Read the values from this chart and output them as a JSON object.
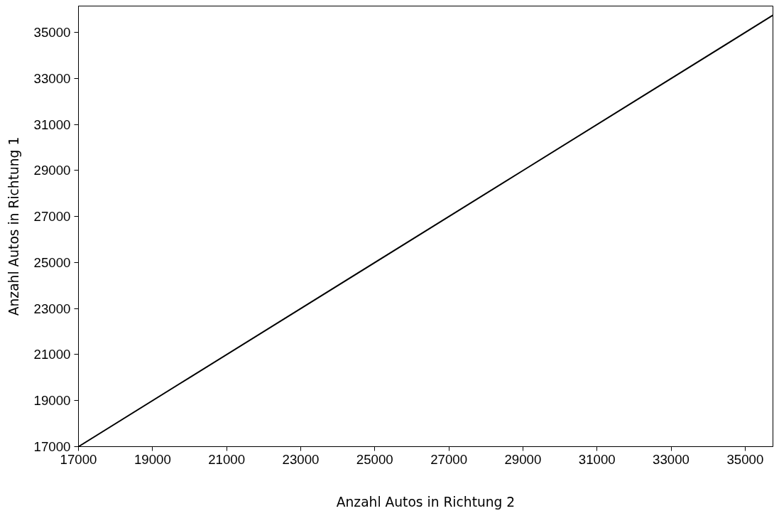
{
  "chart_data": {
    "type": "line",
    "xlabel": "Anzahl Autos in Richtung 2",
    "ylabel": "Anzahl Autos in Richtung 1",
    "x": [
      17000,
      20000,
      29000,
      32000,
      35750
    ],
    "series": [
      {
        "color": "#000000",
        "values": [
          17000,
          20000,
          29000,
          32000,
          35750
        ]
      }
    ],
    "xlim": [
      17000,
      35750
    ],
    "ylim": [
      17000,
      36150
    ],
    "xticks": [
      17000,
      19000,
      21000,
      23000,
      25000,
      27000,
      29000,
      31000,
      33000,
      35000
    ],
    "yticks": [
      17000,
      19000,
      21000,
      23000,
      25000,
      27000,
      29000,
      31000,
      33000,
      35000
    ],
    "grid": false,
    "marker": "none",
    "line_style": "solid"
  }
}
